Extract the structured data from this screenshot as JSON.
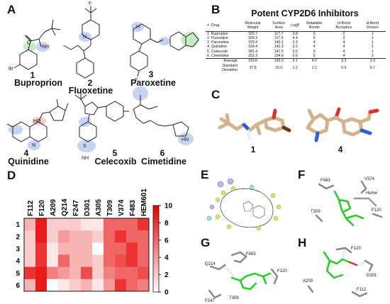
{
  "panels": {
    "a": "A",
    "b": "B",
    "c": "C",
    "d": "D",
    "e": "E",
    "f": "F",
    "g": "G",
    "h": "H"
  },
  "molecules": [
    {
      "num": "1",
      "name": "Buproprion"
    },
    {
      "num": "2",
      "name": "Fluoxetine"
    },
    {
      "num": "3",
      "name": "Paroxetine"
    },
    {
      "num": "4",
      "name": "Quinidine"
    },
    {
      "num": "5",
      "name": "Celecoxib"
    },
    {
      "num": "6",
      "name": "Cimetidine"
    }
  ],
  "atom_labels": {
    "nh": "NH",
    "br": "Br",
    "o": "O",
    "n": "N",
    "f": "F",
    "cf3": "F",
    "h": "H",
    "ho": "HO",
    "s": "S",
    "nh2": "NH",
    "n_ring": "N",
    "hn": "HN"
  },
  "table": {
    "title": "Potent CYP2D6 Inhibitors",
    "headers": [
      "#",
      "Drug",
      "Molecular Weight",
      "Surface Area",
      "LogP",
      "Rotatable Bonds",
      "H-Bond Acceptors",
      "H-Bond Donors"
    ],
    "rows": [
      [
        "1",
        "Bupropion",
        "320.7",
        "117.7",
        "3.8",
        "3",
        "2",
        "1"
      ],
      [
        "2",
        "Fluoxetine",
        "309.3",
        "127.5",
        "4.4",
        "6",
        "2",
        "1"
      ],
      [
        "3",
        "Paroxetine",
        "329.4",
        "140.1",
        "3.3",
        "4",
        "4",
        "1"
      ],
      [
        "4",
        "Quinidine",
        "324.4",
        "142.3",
        "3.2",
        "4",
        "4",
        "1"
      ],
      [
        "5",
        "Celecoxib",
        "381.4",
        "147.5",
        "3.5",
        "3",
        "4",
        "1"
      ],
      [
        "6",
        "Cimetidine",
        "252.3",
        "104.9",
        "0.6",
        "5",
        "4",
        "3"
      ]
    ],
    "stats": [
      [
        "Average",
        "319.6",
        "130.0",
        "3.1",
        "4.2",
        "3.3",
        "1.3"
      ],
      [
        "Standard Deviation",
        "37.8",
        "15.0",
        "1.2",
        "1.1",
        "0.9",
        "0.7"
      ]
    ]
  },
  "structures_c": {
    "left": "1",
    "right": "4"
  },
  "chart_data": {
    "type": "heatmap",
    "x": [
      "F112",
      "F120",
      "A209",
      "Q214",
      "F247",
      "D301",
      "A305",
      "T309",
      "V374",
      "F483",
      "HEM601"
    ],
    "y": [
      "1",
      "2",
      "3",
      "4",
      "5",
      "6"
    ],
    "values": [
      [
        3,
        9,
        2,
        2,
        2,
        1,
        1,
        6,
        6,
        6,
        8
      ],
      [
        2,
        9,
        2,
        4,
        3,
        3,
        2,
        6,
        8,
        6,
        6
      ],
      [
        2,
        8,
        1,
        3,
        3,
        3,
        0,
        6,
        6,
        8,
        6
      ],
      [
        2,
        8,
        1,
        6,
        3,
        3,
        2,
        6,
        7,
        8,
        6
      ],
      [
        8,
        9,
        5,
        4,
        3,
        7,
        2,
        5,
        6,
        6,
        7
      ],
      [
        3,
        9,
        0,
        1,
        2,
        3,
        1,
        4,
        8,
        6,
        5
      ]
    ],
    "colorbar": {
      "ticks": [
        "0",
        "2",
        "4",
        "6",
        "8",
        "10"
      ],
      "range": [
        0,
        10
      ]
    },
    "colorscale": [
      "#ffffff",
      "#e60000"
    ]
  },
  "interaction_labels": {
    "f": {
      "f483": "F483",
      "v374": "V374",
      "heme": "Heme",
      "t309": "T309",
      "f120": "F120"
    },
    "g": {
      "f483": "F483",
      "q214": "Q214",
      "t309": "T309",
      "f120": "F120",
      "f247": "F247"
    },
    "h": {
      "f120": "F120",
      "a209": "A209",
      "d301": "D301",
      "f112": "F112"
    }
  },
  "colors": {
    "red_accent": "#e60000",
    "ligand_green": "#22cc22",
    "stick_tan": "#d2b48c",
    "blue_highlight": "#c7d3f3",
    "green_highlight": "#c6ecc6",
    "red_highlight": "#f7c9c9"
  }
}
